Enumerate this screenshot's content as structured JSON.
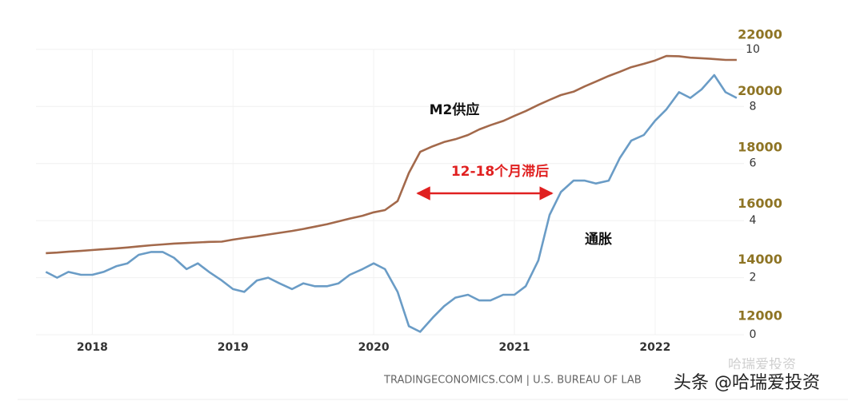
{
  "chart_data": {
    "type": "line",
    "annotation": "12-18个月滞后",
    "source": "TRADINGECONOMICS.COM | U.S. BUREAU OF LAB",
    "watermark": "头条 @哈瑞爱投资",
    "watermark_faint": "哈瑞爱投资",
    "x": [
      2017.67,
      2017.75,
      2017.83,
      2017.92,
      2018.0,
      2018.08,
      2018.17,
      2018.25,
      2018.33,
      2018.42,
      2018.5,
      2018.58,
      2018.67,
      2018.75,
      2018.83,
      2018.92,
      2019.0,
      2019.08,
      2019.17,
      2019.25,
      2019.33,
      2019.42,
      2019.5,
      2019.58,
      2019.67,
      2019.75,
      2019.83,
      2019.92,
      2020.0,
      2020.08,
      2020.17,
      2020.25,
      2020.33,
      2020.42,
      2020.5,
      2020.58,
      2020.67,
      2020.75,
      2020.83,
      2020.92,
      2021.0,
      2021.08,
      2021.17,
      2021.25,
      2021.33,
      2021.42,
      2021.5,
      2021.58,
      2021.67,
      2021.75,
      2021.83,
      2021.92,
      2022.0,
      2022.08,
      2022.17,
      2022.25,
      2022.33,
      2022.42,
      2022.5,
      2022.58
    ],
    "xlim": [
      2017.6,
      2022.66
    ],
    "xticks": [
      2018,
      2019,
      2020,
      2021,
      2022
    ],
    "ylim": [
      0,
      10.5
    ],
    "yticks": [
      0,
      2,
      4,
      6,
      8,
      10
    ],
    "y2lim": [
      11350,
      22000
    ],
    "y2ticks": [
      12000,
      14000,
      16000,
      18000,
      20000,
      22000
    ],
    "grid": true,
    "series": [
      {
        "name": "M2供应",
        "color": "#a3694b",
        "axis": "y2",
        "values": [
          14250,
          14270,
          14300,
          14330,
          14360,
          14390,
          14420,
          14450,
          14490,
          14530,
          14560,
          14590,
          14610,
          14630,
          14650,
          14660,
          14730,
          14790,
          14850,
          14910,
          14970,
          15040,
          15110,
          15190,
          15280,
          15380,
          15480,
          15580,
          15700,
          15780,
          16100,
          17100,
          17850,
          18050,
          18200,
          18300,
          18450,
          18650,
          18800,
          18950,
          19130,
          19300,
          19520,
          19700,
          19870,
          19990,
          20180,
          20350,
          20550,
          20700,
          20860,
          20980,
          21100,
          21260,
          21250,
          21200,
          21180,
          21150,
          21120,
          21120
        ]
      },
      {
        "name": "通胀",
        "color": "#6a9cc6",
        "values": [
          2.2,
          2.0,
          2.2,
          2.1,
          2.1,
          2.2,
          2.4,
          2.5,
          2.8,
          2.9,
          2.9,
          2.7,
          2.3,
          2.5,
          2.2,
          1.9,
          1.6,
          1.5,
          1.9,
          2.0,
          1.8,
          1.6,
          1.8,
          1.7,
          1.7,
          1.8,
          2.1,
          2.3,
          2.5,
          2.3,
          1.5,
          0.3,
          0.1,
          0.6,
          1.0,
          1.3,
          1.4,
          1.2,
          1.2,
          1.4,
          1.4,
          1.7,
          2.6,
          4.2,
          5.0,
          5.4,
          5.4,
          5.3,
          5.4,
          6.2,
          6.8,
          7.0,
          7.5,
          7.9,
          8.5,
          8.3,
          8.6,
          9.1,
          8.5,
          8.3
        ]
      }
    ]
  }
}
